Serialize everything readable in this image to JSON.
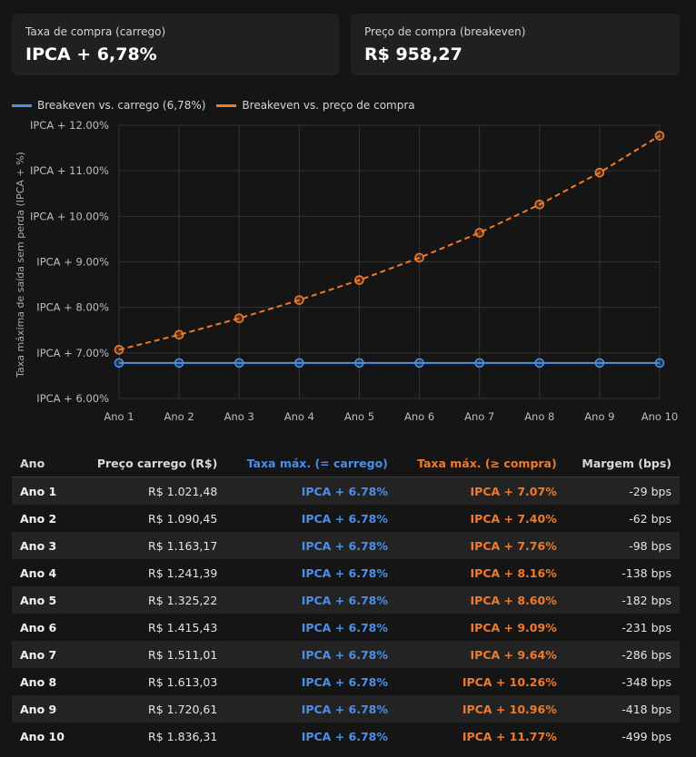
{
  "cards": [
    {
      "label": "Taxa de compra (carrego)",
      "value": "IPCA + 6,78%"
    },
    {
      "label": "Preço de compra (breakeven)",
      "value": "R$ 958,27"
    }
  ],
  "colors": {
    "carry": "#4a8fe8",
    "purchase": "#f07a2a"
  },
  "chart_data": {
    "type": "line",
    "categories": [
      "Ano 1",
      "Ano 2",
      "Ano 3",
      "Ano 4",
      "Ano 5",
      "Ano 6",
      "Ano 7",
      "Ano 8",
      "Ano 9",
      "Ano 10"
    ],
    "series": [
      {
        "name": "Breakeven vs. carrego (6,78%)",
        "values": [
          6.78,
          6.78,
          6.78,
          6.78,
          6.78,
          6.78,
          6.78,
          6.78,
          6.78,
          6.78
        ]
      },
      {
        "name": "Breakeven vs. preço de compra",
        "values": [
          7.07,
          7.4,
          7.76,
          8.16,
          8.6,
          9.09,
          9.64,
          10.26,
          10.96,
          11.77
        ]
      }
    ],
    "ylabel": "Taxa máxima de saída sem perda (IPCA + %)",
    "ylim": [
      6,
      12
    ],
    "yticks": [
      "IPCA + 6.00%",
      "IPCA + 7.00%",
      "IPCA + 8.00%",
      "IPCA + 9.00%",
      "IPCA + 10.00%",
      "IPCA + 11.00%",
      "IPCA + 12.00%"
    ],
    "grid": true,
    "legend": "top-left"
  },
  "table": {
    "headers": [
      "Ano",
      "Preço carrego (R$)",
      "Taxa máx. (= carrego)",
      "Taxa máx. (≥ compra)",
      "Margem (bps)"
    ],
    "rows": [
      [
        "Ano 1",
        "R$ 1.021,48",
        "IPCA + 6.78%",
        "IPCA + 7.07%",
        "-29 bps"
      ],
      [
        "Ano 2",
        "R$ 1.090,45",
        "IPCA + 6.78%",
        "IPCA + 7.40%",
        "-62 bps"
      ],
      [
        "Ano 3",
        "R$ 1.163,17",
        "IPCA + 6.78%",
        "IPCA + 7.76%",
        "-98 bps"
      ],
      [
        "Ano 4",
        "R$ 1.241,39",
        "IPCA + 6.78%",
        "IPCA + 8.16%",
        "-138 bps"
      ],
      [
        "Ano 5",
        "R$ 1.325,22",
        "IPCA + 6.78%",
        "IPCA + 8.60%",
        "-182 bps"
      ],
      [
        "Ano 6",
        "R$ 1.415,43",
        "IPCA + 6.78%",
        "IPCA + 9.09%",
        "-231 bps"
      ],
      [
        "Ano 7",
        "R$ 1.511,01",
        "IPCA + 6.78%",
        "IPCA + 9.64%",
        "-286 bps"
      ],
      [
        "Ano 8",
        "R$ 1.613,03",
        "IPCA + 6.78%",
        "IPCA + 10.26%",
        "-348 bps"
      ],
      [
        "Ano 9",
        "R$ 1.720,61",
        "IPCA + 6.78%",
        "IPCA + 10.96%",
        "-418 bps"
      ],
      [
        "Ano 10",
        "R$ 1.836,31",
        "IPCA + 6.78%",
        "IPCA + 11.77%",
        "-499 bps"
      ]
    ]
  }
}
